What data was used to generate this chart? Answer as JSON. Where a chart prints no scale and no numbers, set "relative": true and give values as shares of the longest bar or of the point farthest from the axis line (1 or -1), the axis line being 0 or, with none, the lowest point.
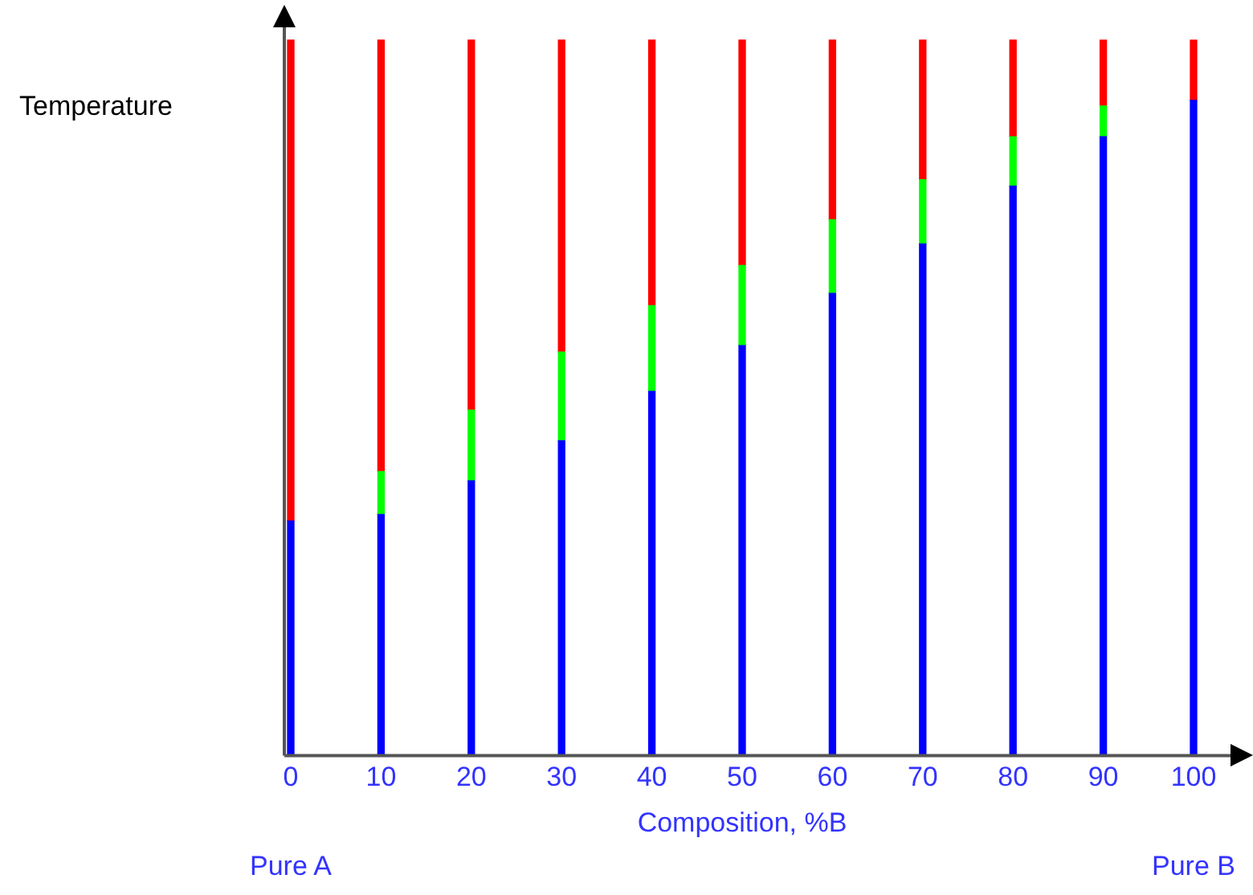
{
  "chart_data": {
    "type": "bar",
    "stacked": true,
    "relative": true,
    "xlabel": "Composition, %B",
    "ylabel": "Temperature",
    "categories": [
      "0",
      "10",
      "20",
      "30",
      "40",
      "50",
      "60",
      "70",
      "80",
      "90",
      "100"
    ],
    "series": [
      {
        "color": "#0000ff",
        "values": [
          0.328,
          0.337,
          0.384,
          0.44,
          0.509,
          0.573,
          0.646,
          0.715,
          0.796,
          0.865,
          0.916
        ]
      },
      {
        "color": "#00ff00",
        "values": [
          null,
          0.06,
          0.099,
          0.124,
          0.12,
          0.112,
          0.103,
          0.09,
          0.069,
          0.043,
          null
        ]
      },
      {
        "color": "#ff0000",
        "values": [
          0.672,
          0.603,
          0.517,
          0.436,
          0.371,
          0.315,
          0.251,
          0.195,
          0.135,
          0.092,
          0.084
        ]
      }
    ],
    "annotations": [
      "Pure A",
      "Pure B"
    ],
    "grid": false,
    "legend": false
  }
}
